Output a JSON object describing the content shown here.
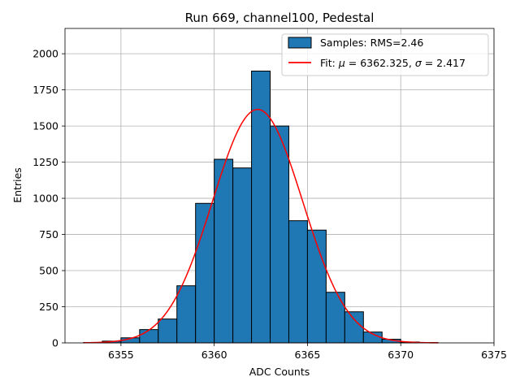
{
  "chart_data": {
    "type": "bar",
    "title": "Run 669, channel100, Pedestal",
    "xlabel": "ADC Counts",
    "ylabel": "Entries",
    "xlim": [
      6352,
      6375
    ],
    "ylim": [
      0,
      2175
    ],
    "grid": true,
    "legend_position": "top-right",
    "xticks": [
      6355,
      6360,
      6365,
      6370,
      6375
    ],
    "yticks": [
      0,
      250,
      500,
      750,
      1000,
      1250,
      1500,
      1750,
      2000
    ],
    "histogram": {
      "name": "Samples: RMS=2.46",
      "bin_width": 1,
      "bin_left_edges": [
        6353,
        6354,
        6355,
        6356,
        6357,
        6358,
        6359,
        6360,
        6361,
        6362,
        6363,
        6364,
        6365,
        6366,
        6367,
        6368,
        6369,
        6370,
        6371
      ],
      "values": [
        3,
        12,
        35,
        92,
        165,
        395,
        965,
        1270,
        1210,
        1880,
        1500,
        845,
        780,
        350,
        215,
        75,
        25,
        6,
        2
      ],
      "color": "#1f77b4",
      "edge_color": "#000000"
    },
    "fit": {
      "name": "Fit: μ = 6362.325, σ = 2.417",
      "legend_label_text": "Fit: ",
      "legend_mu_symbol": "μ",
      "legend_mu_text": " = 6362.325, ",
      "legend_sigma_symbol": "σ",
      "legend_sigma_text": " = 2.417",
      "type": "gaussian",
      "mu": 6362.325,
      "sigma": 2.417,
      "amplitude": 1615,
      "x_range": [
        6353,
        6372
      ],
      "color": "#ff0000"
    }
  }
}
